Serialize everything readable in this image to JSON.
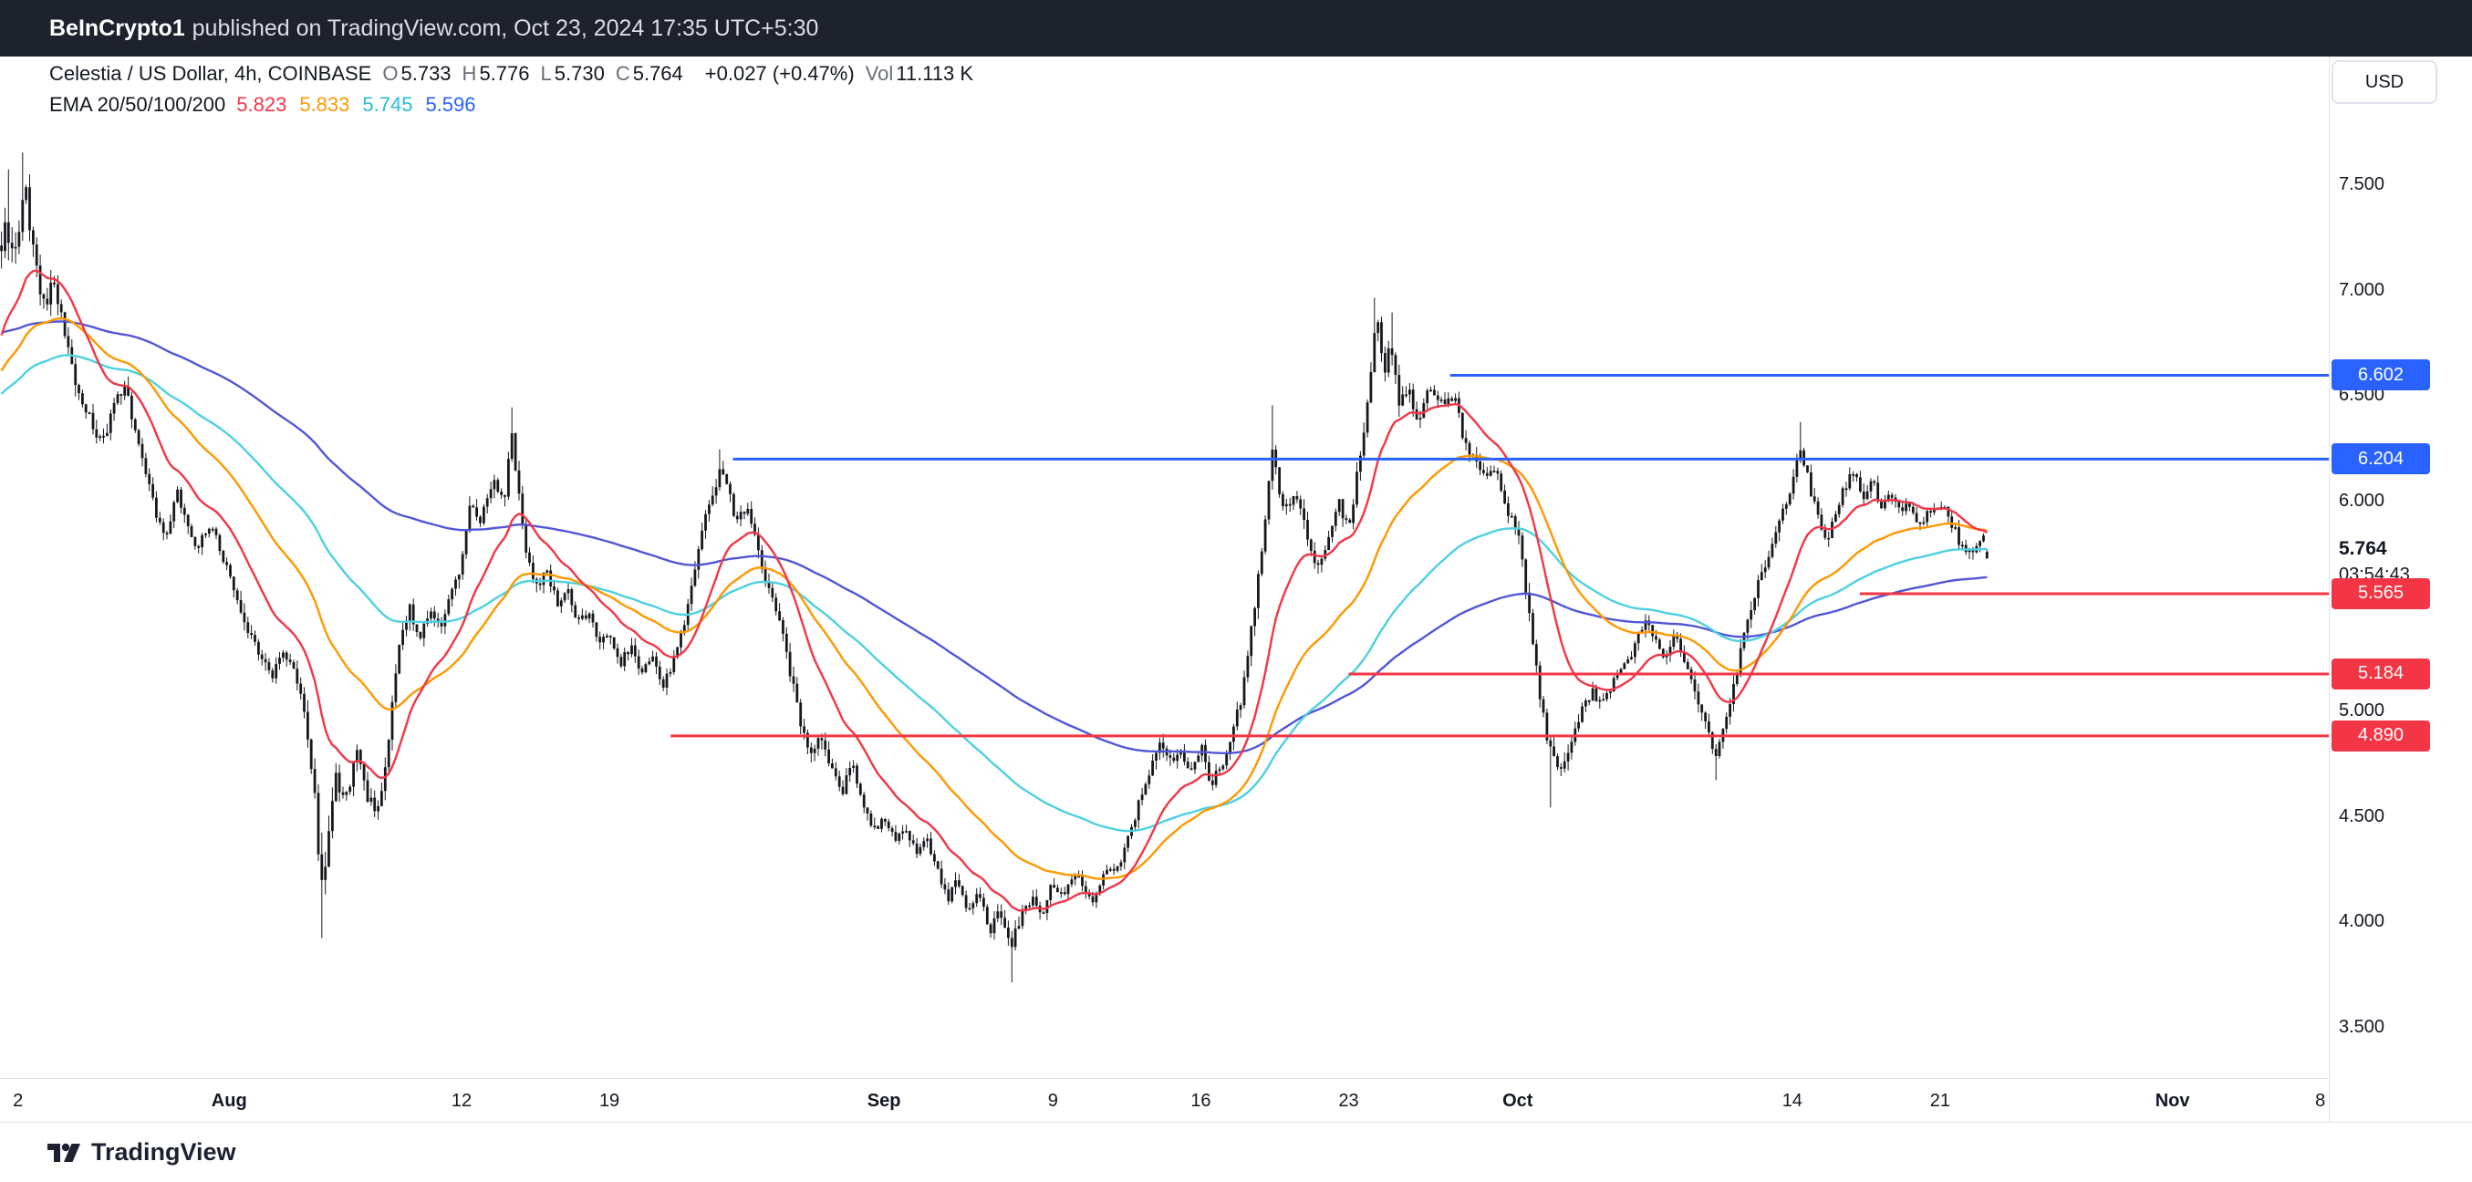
{
  "banner": {
    "publisher": "BeInCrypto1",
    "suffix": "published on TradingView.com, Oct 23, 2024 17:35 UTC+5:30"
  },
  "legend": {
    "symbol": "Celestia / US Dollar, 4h, COINBASE",
    "ohlc": [
      [
        "O",
        "5.733"
      ],
      [
        "H",
        "5.776"
      ],
      [
        "L",
        "5.730"
      ],
      [
        "C",
        "5.764"
      ]
    ],
    "change": "+0.027 (+0.47%)",
    "vol_label": "Vol",
    "vol_value": "11.113 K",
    "ema_label": "EMA 20/50/100/200",
    "ema_values": [
      {
        "v": "5.823",
        "color": "#f23645"
      },
      {
        "v": "5.833",
        "color": "#ff9800"
      },
      {
        "v": "5.745",
        "color": "#2bbbd4"
      },
      {
        "v": "5.596",
        "color": "#2962ff"
      }
    ]
  },
  "currency_button": "USD",
  "watermark": "TradingView",
  "chart_data": {
    "type": "candlestick",
    "symbol": "Celestia / US Dollar",
    "timeframe": "4h",
    "exchange": "COINBASE",
    "scale": {
      "price_range": [
        3.266,
        8.115
      ],
      "day_range": [
        0.15,
        110.4
      ]
    },
    "current": {
      "value": "5.764",
      "countdown": "03:54:43",
      "price": 5.764
    },
    "y_ticks": [
      {
        "label": "7.500",
        "price": 7.5
      },
      {
        "label": "7.000",
        "price": 7.0
      },
      {
        "label": "6.500",
        "price": 6.5
      },
      {
        "label": "6.000",
        "price": 6.0
      },
      {
        "label": "5.000",
        "price": 5.0
      },
      {
        "label": "4.500",
        "price": 4.5
      },
      {
        "label": "4.000",
        "price": 4.0
      },
      {
        "label": "3.500",
        "price": 3.5
      }
    ],
    "x_labels": [
      {
        "text": "2",
        "day": 1
      },
      {
        "text": "Aug",
        "day": 11,
        "bold": true
      },
      {
        "text": "12",
        "day": 22
      },
      {
        "text": "19",
        "day": 29
      },
      {
        "text": "Sep",
        "day": 42,
        "bold": true
      },
      {
        "text": "9",
        "day": 50
      },
      {
        "text": "16",
        "day": 57
      },
      {
        "text": "23",
        "day": 64
      },
      {
        "text": "Oct",
        "day": 72,
        "bold": true
      },
      {
        "text": "14",
        "day": 85
      },
      {
        "text": "21",
        "day": 92
      },
      {
        "text": "Nov",
        "day": 103,
        "bold": true
      },
      {
        "text": "8",
        "day": 110
      }
    ],
    "levels": [
      {
        "label": "6.602",
        "price": 6.602,
        "start_day": 68.8,
        "color": "#2962ff"
      },
      {
        "label": "6.204",
        "price": 6.204,
        "start_day": 34.85,
        "color": "#2962ff"
      },
      {
        "label": "5.565",
        "price": 5.565,
        "start_day": 88.2,
        "color": "#f23645"
      },
      {
        "label": "5.184",
        "price": 5.184,
        "start_day": 64.0,
        "color": "#f23645"
      },
      {
        "label": "4.890",
        "price": 4.89,
        "start_day": 31.9,
        "color": "#f23645"
      }
    ],
    "emas": [
      {
        "period": 20,
        "seed": 6.75,
        "color": "#f23645"
      },
      {
        "period": 50,
        "seed": 6.6,
        "color": "#ff9800"
      },
      {
        "period": 100,
        "seed": 6.5,
        "color": "#4dd0e1"
      },
      {
        "period": 200,
        "seed": 6.8,
        "color": "#5156d6"
      }
    ],
    "last_candle": {
      "open": 5.733,
      "high": 5.776,
      "low": 5.73,
      "close": 5.764
    },
    "candles": {
      "count": 565,
      "start_day": 0.22,
      "step_days": 0.1666667,
      "seed": 90210,
      "color": "#16181d",
      "body_width": 2.8,
      "spikes": [
        {
          "day": 0.5,
          "high": 7.58
        },
        {
          "day": 1.3,
          "high": 7.66
        },
        {
          "day": 15.35,
          "low": 3.93
        },
        {
          "day": 24.35,
          "high": 6.45
        },
        {
          "day": 34.3,
          "high": 6.25
        },
        {
          "day": 48.05,
          "low": 3.72
        },
        {
          "day": 60.35,
          "high": 6.46
        },
        {
          "day": 65.3,
          "high": 6.97
        },
        {
          "day": 66.0,
          "high": 6.9
        },
        {
          "day": 73.6,
          "low": 4.55
        },
        {
          "day": 81.4,
          "low": 4.68
        },
        {
          "day": 85.4,
          "high": 6.38
        }
      ],
      "anchors": [
        [
          0.0,
          7.02,
          0.1
        ],
        [
          0.4,
          7.38,
          0.1
        ],
        [
          0.8,
          7.12,
          0.09
        ],
        [
          1.3,
          7.5,
          0.1
        ],
        [
          1.7,
          7.22,
          0.08
        ],
        [
          2.2,
          6.92,
          0.07
        ],
        [
          2.7,
          7.08,
          0.07
        ],
        [
          3.2,
          6.8,
          0.065
        ],
        [
          3.8,
          6.55,
          0.06
        ],
        [
          4.5,
          6.38,
          0.055
        ],
        [
          5.0,
          6.28,
          0.05
        ],
        [
          5.5,
          6.44,
          0.05
        ],
        [
          6.0,
          6.55,
          0.05
        ],
        [
          6.5,
          6.38,
          0.05
        ],
        [
          7.0,
          6.18,
          0.05
        ],
        [
          7.5,
          5.95,
          0.055
        ],
        [
          8.0,
          5.85,
          0.05
        ],
        [
          8.5,
          6.05,
          0.05
        ],
        [
          9.0,
          5.92,
          0.045
        ],
        [
          9.5,
          5.76,
          0.045
        ],
        [
          10.0,
          5.9,
          0.04
        ],
        [
          10.5,
          5.8,
          0.04
        ],
        [
          11.0,
          5.66,
          0.045
        ],
        [
          11.5,
          5.5,
          0.05
        ],
        [
          12.0,
          5.36,
          0.05
        ],
        [
          12.5,
          5.26,
          0.045
        ],
        [
          13.0,
          5.16,
          0.045
        ],
        [
          13.5,
          5.3,
          0.045
        ],
        [
          14.0,
          5.24,
          0.05
        ],
        [
          14.6,
          4.96,
          0.06
        ],
        [
          15.1,
          4.6,
          0.1
        ],
        [
          15.35,
          4.15,
          0.13
        ],
        [
          15.7,
          4.45,
          0.09
        ],
        [
          16.0,
          4.7,
          0.07
        ],
        [
          16.5,
          4.56,
          0.06
        ],
        [
          17.0,
          4.84,
          0.06
        ],
        [
          17.5,
          4.62,
          0.055
        ],
        [
          18.0,
          4.5,
          0.05
        ],
        [
          18.5,
          4.85,
          0.055
        ],
        [
          19.0,
          5.28,
          0.06
        ],
        [
          19.5,
          5.5,
          0.055
        ],
        [
          20.0,
          5.36,
          0.05
        ],
        [
          20.5,
          5.48,
          0.045
        ],
        [
          21.0,
          5.42,
          0.045
        ],
        [
          21.5,
          5.55,
          0.045
        ],
        [
          22.0,
          5.7,
          0.05
        ],
        [
          22.4,
          6.0,
          0.05
        ],
        [
          22.8,
          5.88,
          0.045
        ],
        [
          23.2,
          6.02,
          0.045
        ],
        [
          23.6,
          6.12,
          0.05
        ],
        [
          24.0,
          5.96,
          0.05
        ],
        [
          24.35,
          6.32,
          0.06
        ],
        [
          24.7,
          6.05,
          0.05
        ],
        [
          25.0,
          5.8,
          0.05
        ],
        [
          25.5,
          5.58,
          0.05
        ],
        [
          26.0,
          5.68,
          0.045
        ],
        [
          26.5,
          5.52,
          0.04
        ],
        [
          27.0,
          5.58,
          0.04
        ],
        [
          27.5,
          5.42,
          0.04
        ],
        [
          28.0,
          5.48,
          0.04
        ],
        [
          28.5,
          5.33,
          0.04
        ],
        [
          29.0,
          5.38,
          0.04
        ],
        [
          29.5,
          5.22,
          0.04
        ],
        [
          30.0,
          5.32,
          0.04
        ],
        [
          30.5,
          5.18,
          0.04
        ],
        [
          31.0,
          5.28,
          0.04
        ],
        [
          31.5,
          5.12,
          0.04
        ],
        [
          32.0,
          5.22,
          0.04
        ],
        [
          32.6,
          5.46,
          0.045
        ],
        [
          33.0,
          5.66,
          0.05
        ],
        [
          33.5,
          5.92,
          0.05
        ],
        [
          34.0,
          6.08,
          0.05
        ],
        [
          34.3,
          6.15,
          0.05
        ],
        [
          34.7,
          6.02,
          0.045
        ],
        [
          35.0,
          5.92,
          0.04
        ],
        [
          35.5,
          5.98,
          0.04
        ],
        [
          36.0,
          5.78,
          0.045
        ],
        [
          36.5,
          5.6,
          0.045
        ],
        [
          37.0,
          5.46,
          0.045
        ],
        [
          37.5,
          5.22,
          0.05
        ],
        [
          38.0,
          4.98,
          0.055
        ],
        [
          38.5,
          4.78,
          0.055
        ],
        [
          39.0,
          4.88,
          0.05
        ],
        [
          39.5,
          4.72,
          0.045
        ],
        [
          40.0,
          4.62,
          0.045
        ],
        [
          40.5,
          4.76,
          0.04
        ],
        [
          41.0,
          4.58,
          0.04
        ],
        [
          41.5,
          4.43,
          0.045
        ],
        [
          42.0,
          4.52,
          0.04
        ],
        [
          42.5,
          4.38,
          0.04
        ],
        [
          43.0,
          4.46,
          0.04
        ],
        [
          43.5,
          4.33,
          0.04
        ],
        [
          44.0,
          4.42,
          0.04
        ],
        [
          44.5,
          4.26,
          0.04
        ],
        [
          45.0,
          4.1,
          0.05
        ],
        [
          45.5,
          4.22,
          0.045
        ],
        [
          46.0,
          4.06,
          0.045
        ],
        [
          46.5,
          4.16,
          0.04
        ],
        [
          47.0,
          3.97,
          0.045
        ],
        [
          47.5,
          4.06,
          0.04
        ],
        [
          48.0,
          3.9,
          0.05
        ],
        [
          48.4,
          4.02,
          0.05
        ],
        [
          49.0,
          4.12,
          0.04
        ],
        [
          49.5,
          4.05,
          0.04
        ],
        [
          50.0,
          4.2,
          0.04
        ],
        [
          50.5,
          4.12,
          0.04
        ],
        [
          51.0,
          4.24,
          0.04
        ],
        [
          51.5,
          4.16,
          0.04
        ],
        [
          52.0,
          4.1,
          0.04
        ],
        [
          52.5,
          4.28,
          0.04
        ],
        [
          53.0,
          4.24,
          0.04
        ],
        [
          53.5,
          4.38,
          0.04
        ],
        [
          54.0,
          4.55,
          0.045
        ],
        [
          54.5,
          4.7,
          0.045
        ],
        [
          55.0,
          4.85,
          0.05
        ],
        [
          55.5,
          4.76,
          0.045
        ],
        [
          56.0,
          4.82,
          0.04
        ],
        [
          56.5,
          4.7,
          0.04
        ],
        [
          57.0,
          4.85,
          0.04
        ],
        [
          57.5,
          4.66,
          0.045
        ],
        [
          58.0,
          4.75,
          0.04
        ],
        [
          58.5,
          4.9,
          0.045
        ],
        [
          59.0,
          5.1,
          0.05
        ],
        [
          59.4,
          5.4,
          0.06
        ],
        [
          59.8,
          5.7,
          0.06
        ],
        [
          60.1,
          5.95,
          0.06
        ],
        [
          60.35,
          6.28,
          0.07
        ],
        [
          60.7,
          6.08,
          0.06
        ],
        [
          61.0,
          5.96,
          0.05
        ],
        [
          61.5,
          6.05,
          0.05
        ],
        [
          62.0,
          5.86,
          0.05
        ],
        [
          62.5,
          5.68,
          0.05
        ],
        [
          63.0,
          5.8,
          0.045
        ],
        [
          63.5,
          6.0,
          0.05
        ],
        [
          64.0,
          5.88,
          0.05
        ],
        [
          64.5,
          6.18,
          0.055
        ],
        [
          65.0,
          6.58,
          0.07
        ],
        [
          65.3,
          6.88,
          0.07
        ],
        [
          65.65,
          6.62,
          0.06
        ],
        [
          66.0,
          6.74,
          0.06
        ],
        [
          66.4,
          6.44,
          0.06
        ],
        [
          66.8,
          6.56,
          0.05
        ],
        [
          67.2,
          6.36,
          0.05
        ],
        [
          67.6,
          6.5,
          0.05
        ],
        [
          68.0,
          6.54,
          0.05
        ],
        [
          68.5,
          6.44,
          0.045
        ],
        [
          69.0,
          6.5,
          0.045
        ],
        [
          69.5,
          6.28,
          0.045
        ],
        [
          70.0,
          6.2,
          0.045
        ],
        [
          70.5,
          6.1,
          0.04
        ],
        [
          71.0,
          6.16,
          0.04
        ],
        [
          71.5,
          5.96,
          0.04
        ],
        [
          72.0,
          5.88,
          0.05
        ],
        [
          72.4,
          5.58,
          0.06
        ],
        [
          72.8,
          5.28,
          0.07
        ],
        [
          73.2,
          4.98,
          0.07
        ],
        [
          73.6,
          4.8,
          0.06
        ],
        [
          74.0,
          4.74,
          0.055
        ],
        [
          74.5,
          4.86,
          0.05
        ],
        [
          75.0,
          5.0,
          0.045
        ],
        [
          75.5,
          5.1,
          0.04
        ],
        [
          76.0,
          5.04,
          0.04
        ],
        [
          76.5,
          5.14,
          0.04
        ],
        [
          77.0,
          5.2,
          0.04
        ],
        [
          77.5,
          5.3,
          0.04
        ],
        [
          78.0,
          5.44,
          0.045
        ],
        [
          78.5,
          5.35,
          0.04
        ],
        [
          79.0,
          5.26,
          0.04
        ],
        [
          79.5,
          5.38,
          0.04
        ],
        [
          80.0,
          5.2,
          0.04
        ],
        [
          80.5,
          5.05,
          0.045
        ],
        [
          81.0,
          4.9,
          0.05
        ],
        [
          81.4,
          4.8,
          0.05
        ],
        [
          81.8,
          4.94,
          0.045
        ],
        [
          82.2,
          5.1,
          0.05
        ],
        [
          82.6,
          5.3,
          0.05
        ],
        [
          83.0,
          5.48,
          0.05
        ],
        [
          83.5,
          5.64,
          0.05
        ],
        [
          84.0,
          5.8,
          0.05
        ],
        [
          84.5,
          5.94,
          0.05
        ],
        [
          85.0,
          6.1,
          0.055
        ],
        [
          85.4,
          6.24,
          0.055
        ],
        [
          85.8,
          6.08,
          0.05
        ],
        [
          86.2,
          5.94,
          0.05
        ],
        [
          86.6,
          5.8,
          0.05
        ],
        [
          87.0,
          5.94,
          0.045
        ],
        [
          87.5,
          6.08,
          0.045
        ],
        [
          88.0,
          6.14,
          0.045
        ],
        [
          88.4,
          6.0,
          0.045
        ],
        [
          88.8,
          6.1,
          0.04
        ],
        [
          89.2,
          5.96,
          0.04
        ],
        [
          89.6,
          6.04,
          0.04
        ],
        [
          90.0,
          5.96,
          0.04
        ],
        [
          90.5,
          6.0,
          0.04
        ],
        [
          91.0,
          5.9,
          0.04
        ],
        [
          91.5,
          5.96,
          0.04
        ],
        [
          92.0,
          6.0,
          0.04
        ],
        [
          92.5,
          5.9,
          0.04
        ],
        [
          93.0,
          5.8,
          0.045
        ],
        [
          93.5,
          5.74,
          0.04
        ],
        [
          94.0,
          5.84,
          0.04
        ],
        [
          94.4,
          5.76,
          0.035
        ]
      ]
    }
  }
}
